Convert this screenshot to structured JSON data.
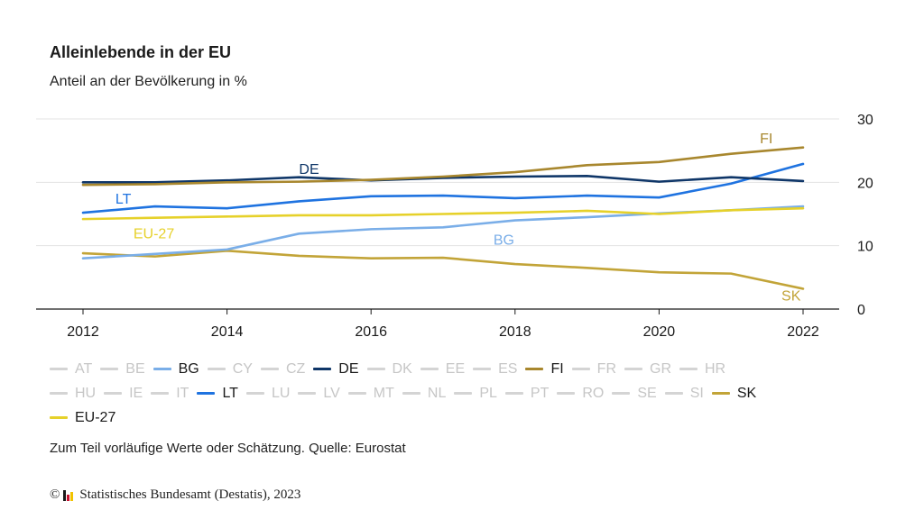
{
  "title": "Alleinlebende in der EU",
  "subtitle": "Anteil an der Bevölkerung in %",
  "note": "Zum Teil vorläufige Werte oder Schätzung. Quelle: Eurostat",
  "footer": {
    "copyright_symbol": "©",
    "text": "Statistisches Bundesamt (Destatis), 2023",
    "logo_colors": [
      "#1a1a1a",
      "#c8102e",
      "#f2c300"
    ]
  },
  "legend": {
    "rows": [
      [
        {
          "label": "AT",
          "active": false
        },
        {
          "label": "BE",
          "active": false
        },
        {
          "label": "BG",
          "active": true,
          "color": "#7aaee8"
        },
        {
          "label": "CY",
          "active": false
        },
        {
          "label": "CZ",
          "active": false
        },
        {
          "label": "DE",
          "active": true,
          "color": "#0f3668"
        },
        {
          "label": "DK",
          "active": false
        },
        {
          "label": "EE",
          "active": false
        },
        {
          "label": "ES",
          "active": false
        },
        {
          "label": "FI",
          "active": true,
          "color": "#a8872e"
        },
        {
          "label": "FR",
          "active": false
        },
        {
          "label": "GR",
          "active": false
        },
        {
          "label": "HR",
          "active": false
        }
      ],
      [
        {
          "label": "HU",
          "active": false
        },
        {
          "label": "IE",
          "active": false
        },
        {
          "label": "IT",
          "active": false
        },
        {
          "label": "LT",
          "active": true,
          "color": "#1f73e0"
        },
        {
          "label": "LU",
          "active": false
        },
        {
          "label": "LV",
          "active": false
        },
        {
          "label": "MT",
          "active": false
        },
        {
          "label": "NL",
          "active": false
        },
        {
          "label": "PL",
          "active": false
        },
        {
          "label": "PT",
          "active": false
        },
        {
          "label": "RO",
          "active": false
        },
        {
          "label": "SE",
          "active": false
        },
        {
          "label": "SI",
          "active": false
        },
        {
          "label": "SK",
          "active": true,
          "color": "#c2a438"
        }
      ],
      [
        {
          "label": "EU-27",
          "active": true,
          "color": "#e6d12a"
        }
      ]
    ]
  },
  "chart_data": {
    "type": "line",
    "x": [
      2012,
      2013,
      2014,
      2015,
      2016,
      2017,
      2018,
      2019,
      2020,
      2021,
      2022
    ],
    "x_ticks": [
      2012,
      2014,
      2016,
      2018,
      2020,
      2022
    ],
    "y_ticks": [
      0,
      10,
      20,
      30
    ],
    "ylim": [
      0,
      30
    ],
    "xlim": [
      2012,
      2022
    ],
    "grid": true,
    "y_axis_side": "right",
    "series": [
      {
        "name": "SK",
        "color": "#c2a438",
        "label_year": 2021.7,
        "label_value": 2.2,
        "values": [
          8.8,
          8.3,
          9.2,
          8.4,
          8.0,
          8.1,
          7.1,
          6.5,
          5.8,
          5.6,
          3.2
        ]
      },
      {
        "name": "BG",
        "color": "#7aaee8",
        "label_year": 2017.7,
        "label_value": 11.0,
        "values": [
          8.0,
          8.7,
          9.4,
          11.9,
          12.6,
          12.9,
          14.0,
          14.5,
          15.1,
          15.6,
          16.2
        ]
      },
      {
        "name": "EU-27",
        "color": "#e6d12a",
        "label_year": 2012.7,
        "label_value": 12.0,
        "values": [
          14.2,
          14.4,
          14.6,
          14.8,
          14.8,
          15.0,
          15.2,
          15.5,
          15.0,
          15.6,
          15.9
        ]
      },
      {
        "name": "LT",
        "color": "#1f73e0",
        "label_year": 2012.45,
        "label_value": 17.5,
        "values": [
          15.2,
          16.2,
          15.9,
          17.0,
          17.8,
          17.9,
          17.5,
          17.9,
          17.6,
          19.8,
          22.9
        ]
      },
      {
        "name": "DE",
        "color": "#0f3668",
        "label_year": 2015.0,
        "label_value": 22.2,
        "values": [
          20.0,
          20.0,
          20.3,
          20.8,
          20.3,
          20.7,
          20.9,
          21.0,
          20.1,
          20.8,
          20.2
        ]
      },
      {
        "name": "FI",
        "color": "#a8872e",
        "label_year": 2021.4,
        "label_value": 27.0,
        "values": [
          19.6,
          19.7,
          20.0,
          20.1,
          20.4,
          20.9,
          21.6,
          22.7,
          23.2,
          24.5,
          25.5
        ]
      }
    ]
  }
}
